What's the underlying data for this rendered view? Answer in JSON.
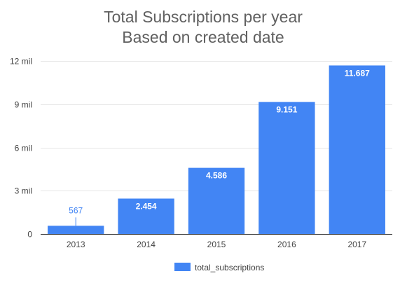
{
  "chart_data": {
    "type": "bar",
    "title_lines": [
      "Total Subscriptions per year",
      "Based on created date"
    ],
    "categories": [
      "2013",
      "2014",
      "2015",
      "2016",
      "2017"
    ],
    "series": [
      {
        "name": "total_subscriptions",
        "values": [
          567,
          2454,
          4586,
          9151,
          11687
        ],
        "color": "#4285f4"
      }
    ],
    "data_labels": [
      "567",
      "2.454",
      "4.586",
      "9.151",
      "11.687"
    ],
    "y_ticks": [
      {
        "value": 0,
        "label": "0"
      },
      {
        "value": 3000,
        "label": "3 mil"
      },
      {
        "value": 6000,
        "label": "6 mil"
      },
      {
        "value": 9000,
        "label": "9 mil"
      },
      {
        "value": 12000,
        "label": "12 mil"
      }
    ],
    "ylim": [
      0,
      12000
    ],
    "xlabel": "",
    "ylabel": "",
    "grid": true,
    "legend_position": "bottom",
    "colors": {
      "bar": "#4285f4",
      "grid": "#e6e6e6",
      "baseline": "#333333",
      "title": "#606060"
    }
  }
}
